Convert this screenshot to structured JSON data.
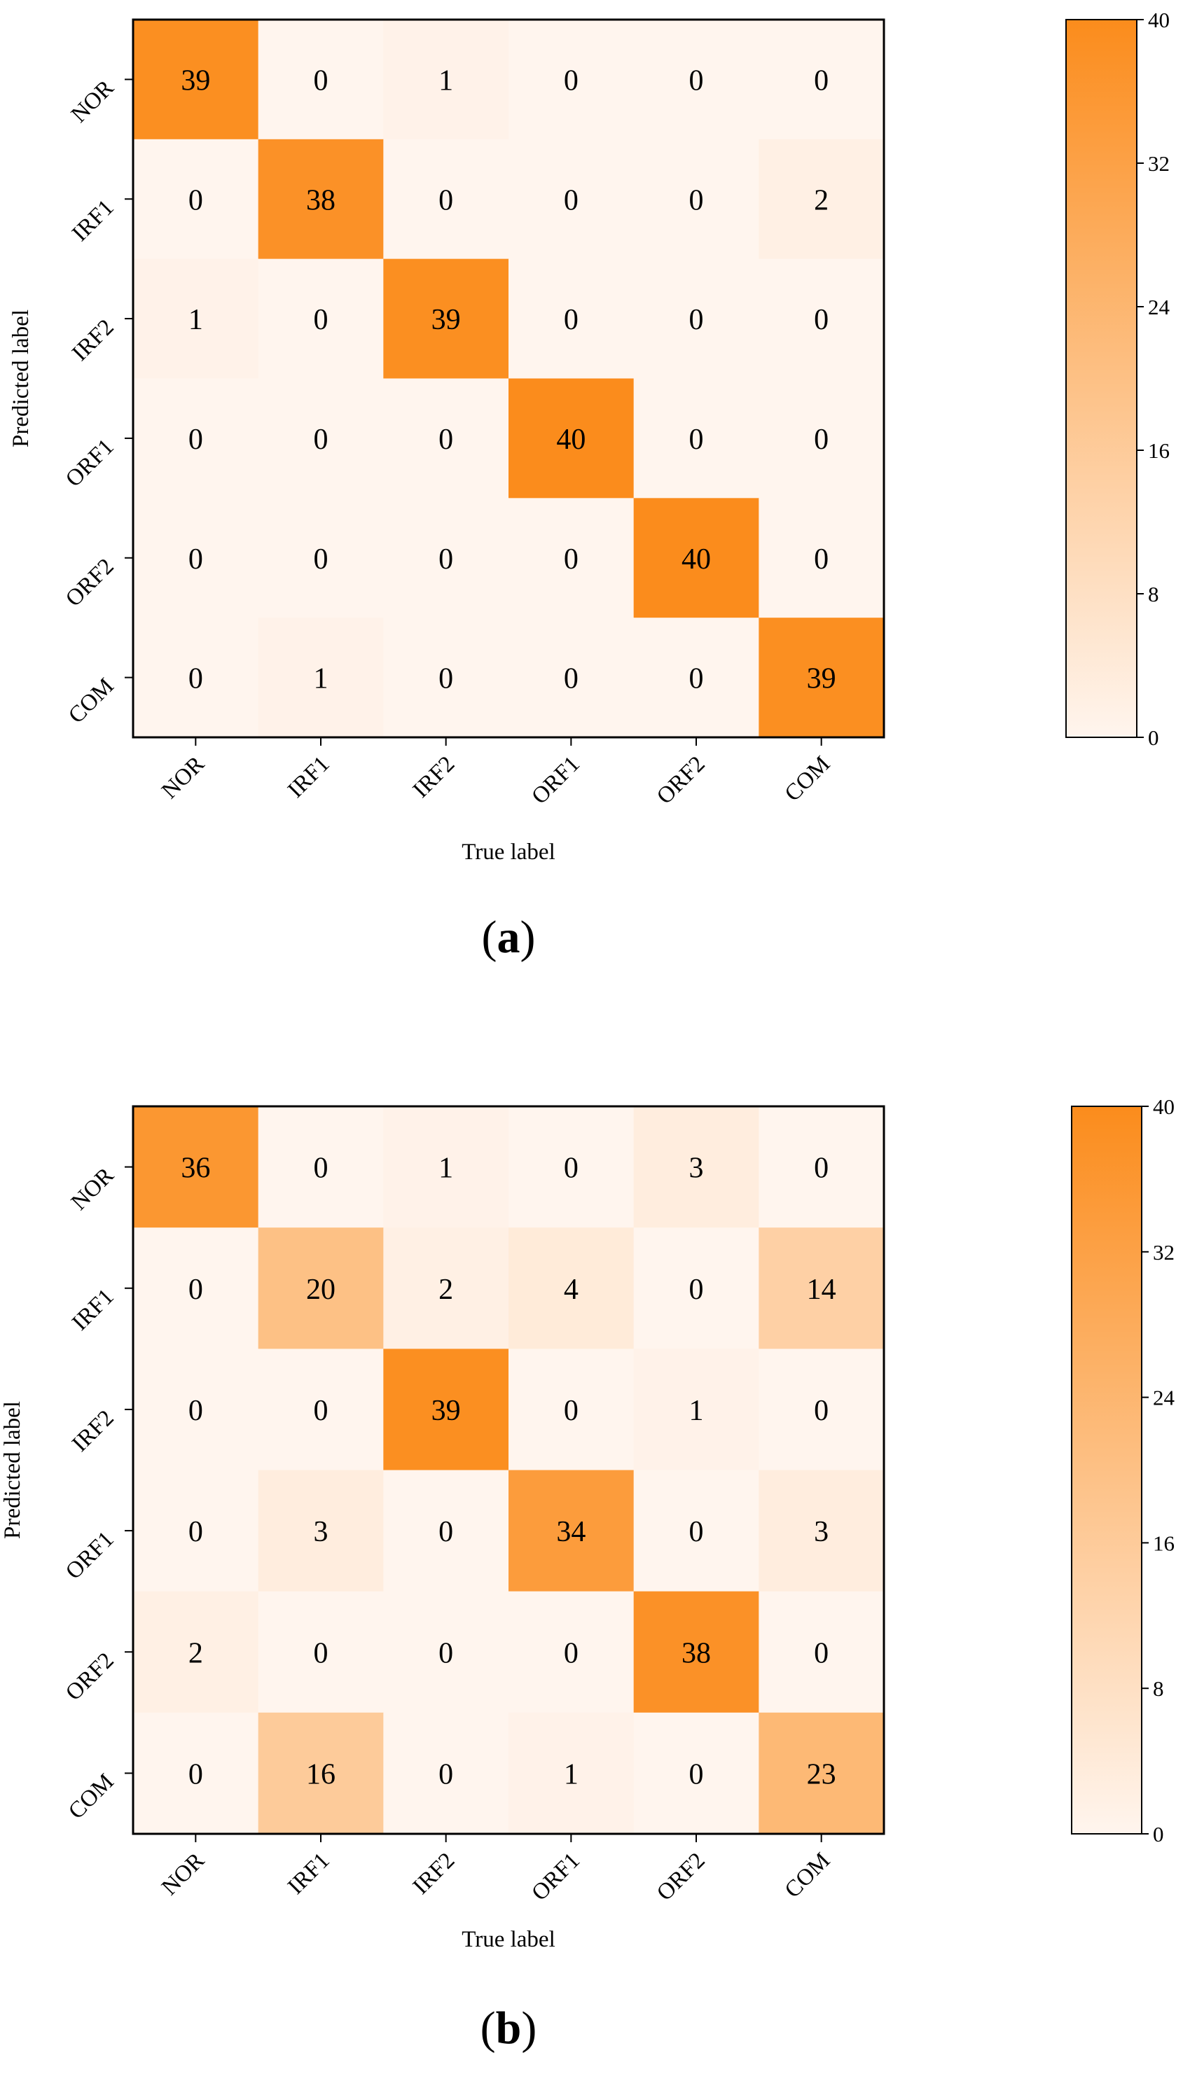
{
  "chart_data": [
    {
      "type": "heatmap",
      "panel_label": {
        "open": "(",
        "letter": "a",
        "close": ")"
      },
      "xlabel": "True label",
      "ylabel": "Predicted label",
      "x_categories": [
        "NOR",
        "IRF1",
        "IRF2",
        "ORF1",
        "ORF2",
        "COM"
      ],
      "y_categories": [
        "NOR",
        "IRF1",
        "IRF2",
        "ORF1",
        "ORF2",
        "COM"
      ],
      "matrix": [
        [
          39,
          0,
          1,
          0,
          0,
          0
        ],
        [
          0,
          38,
          0,
          0,
          0,
          2
        ],
        [
          1,
          0,
          39,
          0,
          0,
          0
        ],
        [
          0,
          0,
          0,
          40,
          0,
          0
        ],
        [
          0,
          0,
          0,
          0,
          40,
          0
        ],
        [
          0,
          1,
          0,
          0,
          0,
          39
        ]
      ],
      "colorbar": {
        "min": 0,
        "max": 40,
        "ticks": [
          "0",
          "8",
          "16",
          "24",
          "32",
          "40"
        ]
      },
      "colors": {
        "low": "#fff5ee",
        "high": "#fb8c1c"
      }
    },
    {
      "type": "heatmap",
      "panel_label": {
        "open": "(",
        "letter": "b",
        "close": ")"
      },
      "xlabel": "True label",
      "ylabel": "Predicted label",
      "x_categories": [
        "NOR",
        "IRF1",
        "IRF2",
        "ORF1",
        "ORF2",
        "COM"
      ],
      "y_categories": [
        "NOR",
        "IRF1",
        "IRF2",
        "ORF1",
        "ORF2",
        "COM"
      ],
      "matrix": [
        [
          36,
          0,
          1,
          0,
          3,
          0
        ],
        [
          0,
          20,
          2,
          4,
          0,
          14
        ],
        [
          0,
          0,
          39,
          0,
          1,
          0
        ],
        [
          0,
          3,
          0,
          34,
          0,
          3
        ],
        [
          2,
          0,
          0,
          0,
          38,
          0
        ],
        [
          0,
          16,
          0,
          1,
          0,
          23
        ]
      ],
      "colorbar": {
        "min": 0,
        "max": 40,
        "ticks": [
          "0",
          "8",
          "16",
          "24",
          "32",
          "40"
        ]
      },
      "colors": {
        "low": "#fff5ee",
        "high": "#fb8c1c"
      }
    }
  ]
}
